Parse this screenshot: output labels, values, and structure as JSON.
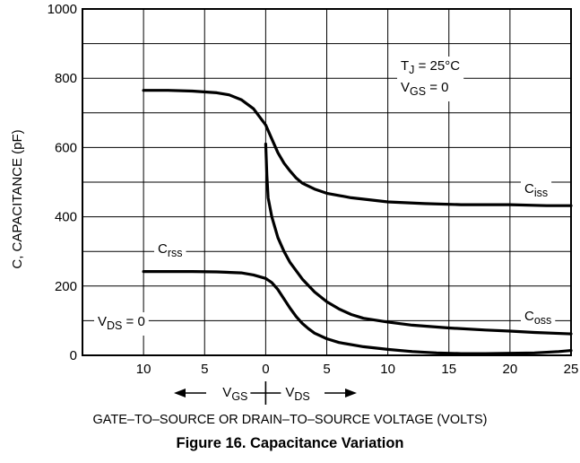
{
  "chart_data": {
    "type": "line",
    "ylabel": "C, CAPACITANCE (pF)",
    "xlabel": "GATE–TO–SOURCE OR DRAIN–TO–SOURCE VOLTAGE (VOLTS)",
    "caption": "Figure 16. Capacitance Variation",
    "ylim": [
      0,
      1000
    ],
    "yticks": [
      "0",
      "200",
      "400",
      "600",
      "800",
      "1000"
    ],
    "xlim": [
      -15,
      25
    ],
    "xtick_labels": [
      {
        "x": -10,
        "label": "10"
      },
      {
        "x": -5,
        "label": "5"
      },
      {
        "x": 0,
        "label": "0"
      },
      {
        "x": 5,
        "label": "5"
      },
      {
        "x": 10,
        "label": "10"
      },
      {
        "x": 15,
        "label": "15"
      },
      {
        "x": 20,
        "label": "20"
      },
      {
        "x": 25,
        "label": "25"
      }
    ],
    "grid": true,
    "direction_indicator": {
      "left": "V",
      "left_sub": "GS",
      "right": "V",
      "right_sub": "DS"
    },
    "conditions": [
      {
        "main": "T",
        "sub": "J",
        "rest": " = 25°C"
      },
      {
        "main": "V",
        "sub": "GS",
        "rest": " = 0"
      }
    ],
    "left_annotation": {
      "main": "V",
      "sub": "DS",
      "rest": " = 0"
    },
    "series": [
      {
        "name": "Ciss",
        "main": "C",
        "sub": "iss",
        "points": [
          [
            -10,
            765
          ],
          [
            -8,
            765
          ],
          [
            -6,
            763
          ],
          [
            -4,
            758
          ],
          [
            -3,
            752
          ],
          [
            -2,
            738
          ],
          [
            -1,
            712
          ],
          [
            0,
            665
          ],
          [
            0.5,
            625
          ],
          [
            1,
            585
          ],
          [
            1.5,
            555
          ],
          [
            2,
            532
          ],
          [
            2.5,
            512
          ],
          [
            3,
            497
          ],
          [
            4,
            480
          ],
          [
            5,
            468
          ],
          [
            7,
            455
          ],
          [
            10,
            443
          ],
          [
            13,
            438
          ],
          [
            16,
            435
          ],
          [
            20,
            435
          ],
          [
            23,
            432
          ],
          [
            25,
            432
          ]
        ]
      },
      {
        "name": "Coss",
        "main": "C",
        "sub": "oss",
        "points": [
          [
            0,
            610
          ],
          [
            0.1,
            520
          ],
          [
            0.2,
            455
          ],
          [
            0.5,
            400
          ],
          [
            1,
            340
          ],
          [
            1.5,
            300
          ],
          [
            2,
            268
          ],
          [
            3,
            220
          ],
          [
            4,
            183
          ],
          [
            5,
            155
          ],
          [
            6,
            134
          ],
          [
            7,
            118
          ],
          [
            8,
            107
          ],
          [
            10,
            96
          ],
          [
            12,
            87
          ],
          [
            15,
            79
          ],
          [
            18,
            73
          ],
          [
            20,
            70
          ],
          [
            22,
            66
          ],
          [
            25,
            62
          ]
        ]
      },
      {
        "name": "Crss",
        "main": "C",
        "sub": "rss",
        "points": [
          [
            -10,
            242
          ],
          [
            -8,
            242
          ],
          [
            -6,
            242
          ],
          [
            -4,
            241
          ],
          [
            -2,
            238
          ],
          [
            -1,
            232
          ],
          [
            0,
            222
          ],
          [
            0.5,
            210
          ],
          [
            1,
            190
          ],
          [
            1.5,
            163
          ],
          [
            2,
            136
          ],
          [
            2.5,
            112
          ],
          [
            3,
            92
          ],
          [
            3.5,
            77
          ],
          [
            4,
            64
          ],
          [
            5,
            48
          ],
          [
            6,
            37
          ],
          [
            8,
            25
          ],
          [
            10,
            17
          ],
          [
            12,
            11
          ],
          [
            14,
            7
          ],
          [
            16,
            5
          ],
          [
            18,
            5
          ],
          [
            20,
            6
          ],
          [
            22,
            7
          ],
          [
            24,
            11
          ],
          [
            25,
            14
          ]
        ]
      }
    ]
  }
}
